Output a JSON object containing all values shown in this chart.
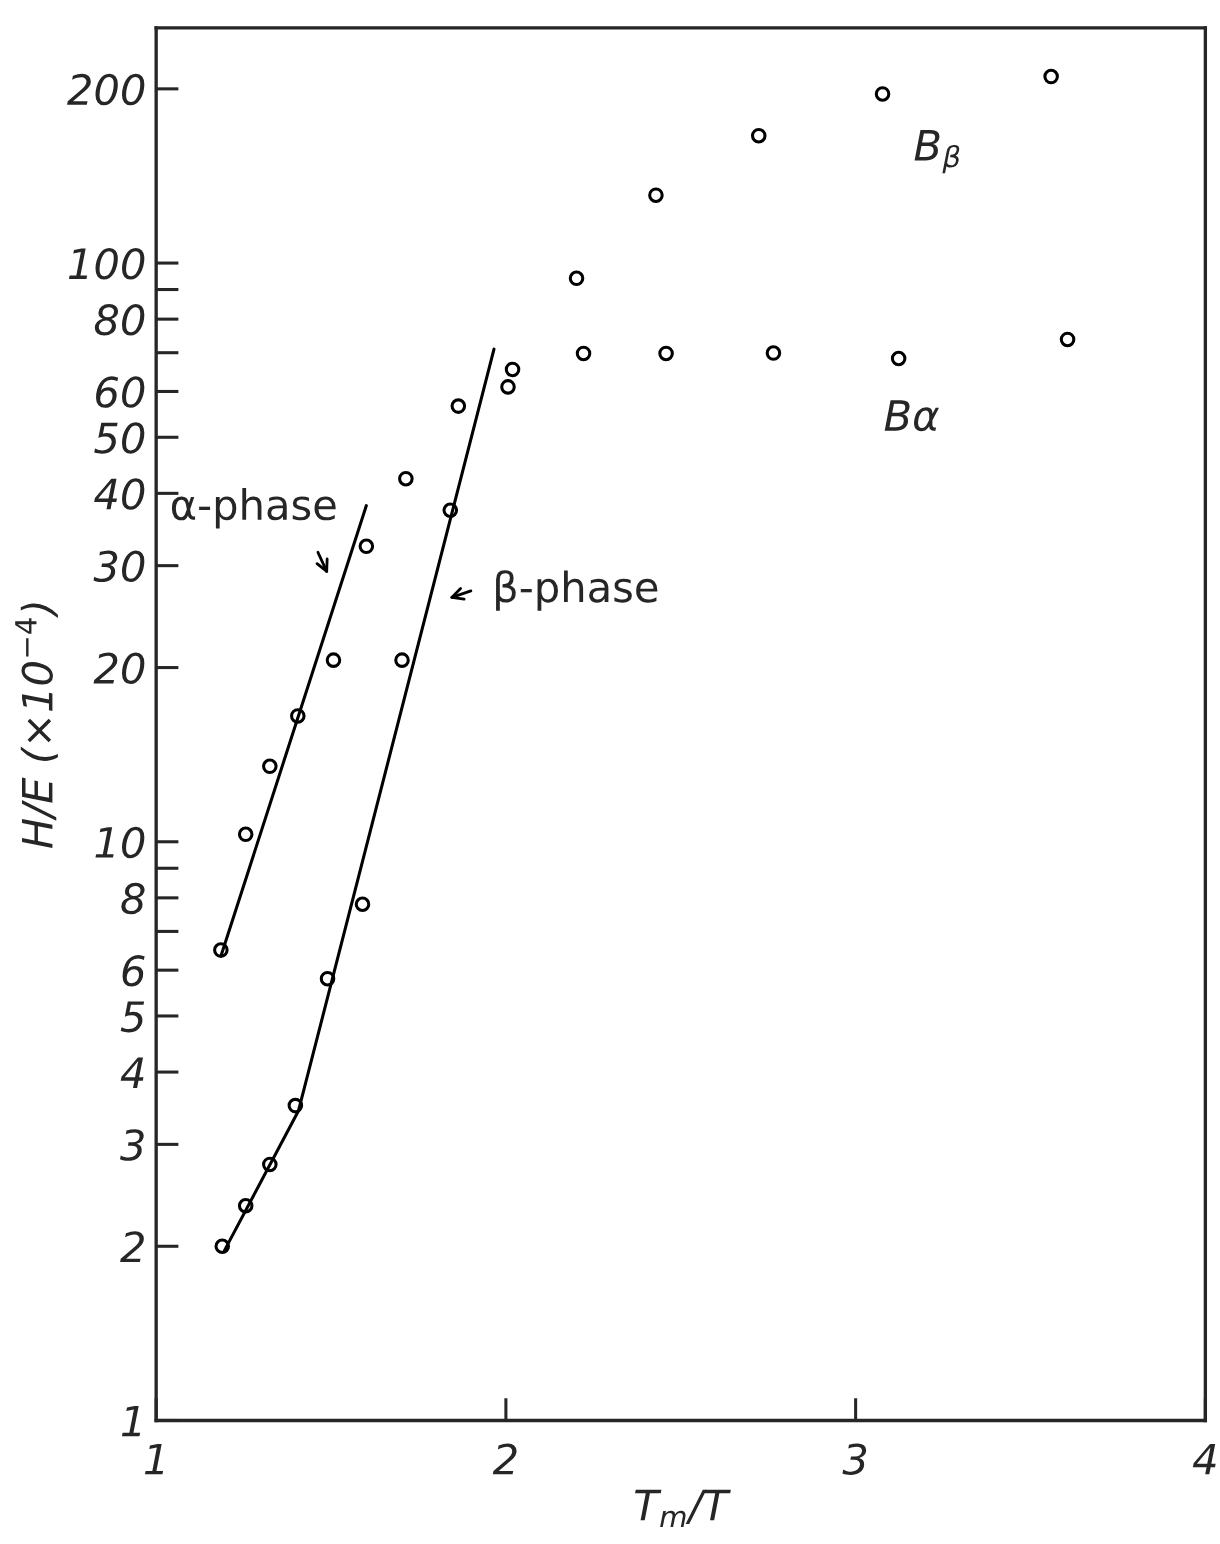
{
  "chart_data": {
    "type": "scatter",
    "xlabel": "T$_{m}$/T",
    "ylabel": "H/E (×10$^{−4}$)",
    "log": "y",
    "xlim": [
      1,
      4
    ],
    "ylim": [
      1,
      255
    ],
    "xticks": [
      1,
      2,
      3,
      4
    ],
    "yticks": [
      1,
      2,
      3,
      4,
      5,
      6,
      {
        "value": 7,
        "label": null
      },
      8,
      {
        "value": 9,
        "label": null
      },
      10,
      20,
      30,
      40,
      50,
      60,
      {
        "value": 70,
        "label": null
      },
      80,
      {
        "value": 90,
        "label": null
      },
      100,
      200
    ],
    "grid": false,
    "legend": false,
    "marker": "circle",
    "series": [
      {
        "color": "#000000",
        "x": [
          1.185,
          1.256,
          1.325,
          1.405,
          1.507,
          1.601,
          1.189,
          1.256,
          1.325,
          1.398,
          1.49,
          1.59,
          1.703,
          1.714,
          1.841,
          1.864,
          2.006,
          2.019,
          2.202,
          2.222,
          2.429,
          2.458,
          2.723,
          2.765,
          3.077,
          3.123,
          3.559,
          3.606
        ],
        "values": [
          6.5,
          10.3,
          13.5,
          16.5,
          20.6,
          32.4,
          2.0,
          2.35,
          2.77,
          3.5,
          5.8,
          7.8,
          20.6,
          42.4,
          37.4,
          56.6,
          61.1,
          65.5,
          94.1,
          69.8,
          131,
          69.8,
          166,
          69.9,
          196,
          68.4,
          210,
          73.8
        ]
      },
      {
        "type": "line",
        "color": "#000000",
        "marker": "none",
        "line_style": "solid",
        "x": [
          1.185,
          1.601
        ],
        "values": [
          6.34,
          38.1
        ]
      },
      {
        "type": "line",
        "color": "#000000",
        "marker": "none",
        "line_style": "solid",
        "x": [
          1.194,
          1.407,
          1.966
        ],
        "values": [
          1.96,
          3.43,
          71
        ]
      }
    ],
    "annotations": [
      "α-phase",
      "β-phase",
      "B$_{β}$",
      "Bα"
    ]
  }
}
